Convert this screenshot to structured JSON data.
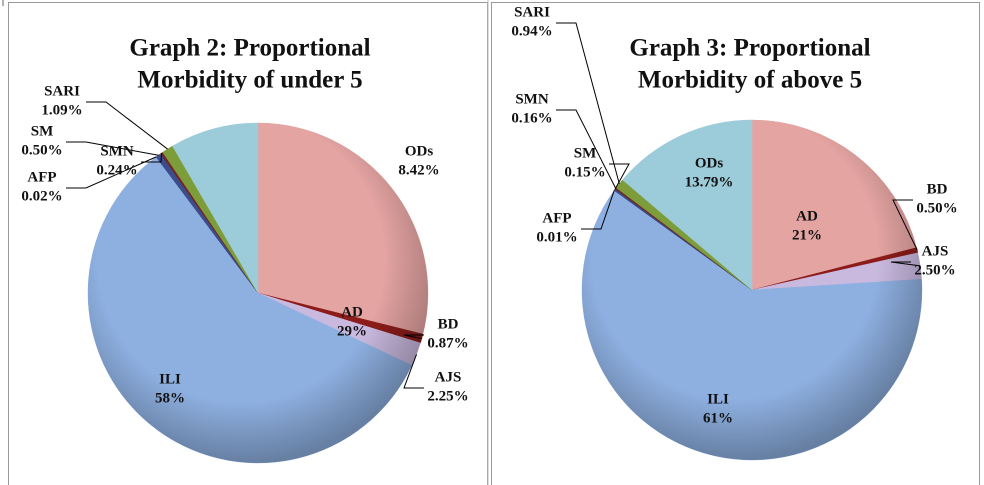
{
  "chart_data": [
    {
      "type": "pie",
      "title": [
        "Graph 2: Proportional",
        "Morbidity of under 5"
      ],
      "categories": [
        "AD",
        "BD",
        "AJS",
        "ILI",
        "AFP",
        "SM",
        "SMN",
        "SARI",
        "ODs"
      ],
      "values": [
        29,
        0.87,
        2.25,
        58,
        0.02,
        0.5,
        0.24,
        1.09,
        8.42
      ],
      "value_labels": [
        "29%",
        "0.87%",
        "2.25%",
        "58%",
        "0.02%",
        "0.50%",
        "0.24%",
        "1.09%",
        "8.42%"
      ],
      "colors": [
        "#e4a4a2",
        "#8c1c1a",
        "#c9b9df",
        "#8eb0e1",
        "#2c3a70",
        "#3b4d8c",
        "#6e2826",
        "#7d9c3a",
        "#9ccbd9"
      ]
    },
    {
      "type": "pie",
      "title": [
        "Graph 3: Proportional",
        "Morbidity of above 5"
      ],
      "categories": [
        "AD",
        "BD",
        "AJS",
        "ILI",
        "AFP",
        "SM",
        "SMN",
        "SARI",
        "ODs"
      ],
      "values": [
        21,
        0.5,
        2.5,
        61,
        0.01,
        0.15,
        0.16,
        0.94,
        13.79
      ],
      "value_labels": [
        "21%",
        "0.50%",
        "2.50%",
        "61%",
        "0.01%",
        "0.15%",
        "0.16%",
        "0.94%",
        "13.79%"
      ],
      "colors": [
        "#e4a4a2",
        "#8c1c1a",
        "#c9b9df",
        "#8eb0e1",
        "#2c3a70",
        "#3b4d8c",
        "#6e2826",
        "#7d9c3a",
        "#9ccbd9"
      ]
    }
  ]
}
